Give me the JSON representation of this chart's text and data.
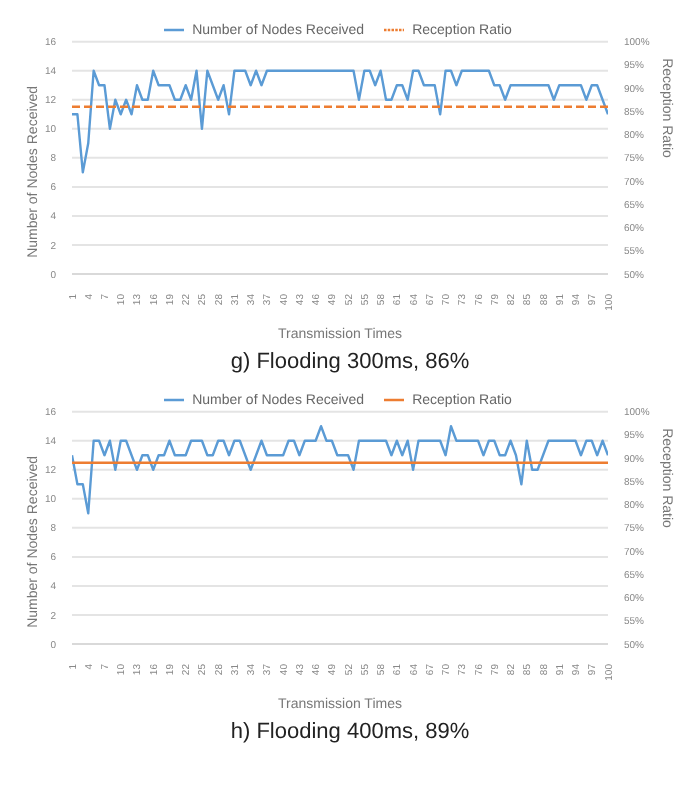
{
  "chart_data": [
    {
      "type": "line",
      "title": "g) Flooding 300ms, 86%",
      "xlabel": "Transmission Times",
      "ylabel": "Number of Nodes Received",
      "y2label": "Reception Ratio",
      "legend": "top",
      "grid": "y",
      "marker": "none",
      "x": [
        1,
        2,
        3,
        4,
        5,
        6,
        7,
        8,
        9,
        10,
        11,
        12,
        13,
        14,
        15,
        16,
        17,
        18,
        19,
        20,
        21,
        22,
        23,
        24,
        25,
        26,
        27,
        28,
        29,
        30,
        31,
        32,
        33,
        34,
        35,
        36,
        37,
        38,
        39,
        40,
        41,
        42,
        43,
        44,
        45,
        46,
        47,
        48,
        49,
        50,
        51,
        52,
        53,
        54,
        55,
        56,
        57,
        58,
        59,
        60,
        61,
        62,
        63,
        64,
        65,
        66,
        67,
        68,
        69,
        70,
        71,
        72,
        73,
        74,
        75,
        76,
        77,
        78,
        79,
        80,
        81,
        82,
        83,
        84,
        85,
        86,
        87,
        88,
        89,
        90,
        91,
        92,
        93,
        94,
        95,
        96,
        97,
        98,
        99,
        100
      ],
      "xlim": [
        1,
        100
      ],
      "xticks": [
        1,
        4,
        7,
        10,
        13,
        16,
        19,
        22,
        25,
        28,
        31,
        34,
        37,
        40,
        43,
        46,
        49,
        52,
        55,
        58,
        61,
        64,
        67,
        70,
        73,
        76,
        79,
        82,
        85,
        88,
        91,
        94,
        97,
        100
      ],
      "ylim": [
        0,
        16
      ],
      "yticks": [
        0,
        2,
        4,
        6,
        8,
        10,
        12,
        14,
        16
      ],
      "y2lim": [
        50,
        100
      ],
      "y2ticks": [
        {
          "value": 50,
          "label": "50%"
        },
        {
          "value": 55,
          "label": "55%"
        },
        {
          "value": 60,
          "label": "60%"
        },
        {
          "value": 65,
          "label": "65%"
        },
        {
          "value": 70,
          "label": "70%"
        },
        {
          "value": 75,
          "label": "75%"
        },
        {
          "value": 80,
          "label": "80%"
        },
        {
          "value": 85,
          "label": "85%"
        },
        {
          "value": 90,
          "label": "90%"
        },
        {
          "value": 95,
          "label": "95%"
        },
        {
          "value": 100,
          "label": "100%"
        }
      ],
      "series": [
        {
          "name": "Number of Nodes Received",
          "color": "#5b9bd5",
          "line_style": "solid",
          "values": [
            11,
            11,
            7,
            9,
            14,
            13,
            13,
            10,
            12,
            11,
            12,
            11,
            13,
            12,
            12,
            14,
            13,
            13,
            13,
            12,
            12,
            13,
            12,
            14,
            10,
            14,
            13,
            12,
            13,
            11,
            14,
            14,
            14,
            13,
            14,
            13,
            14,
            14,
            14,
            14,
            14,
            14,
            14,
            14,
            14,
            14,
            14,
            14,
            14,
            14,
            14,
            14,
            14,
            12,
            14,
            14,
            13,
            14,
            12,
            12,
            13,
            13,
            12,
            14,
            14,
            13,
            13,
            13,
            11,
            14,
            14,
            13,
            14,
            14,
            14,
            14,
            14,
            14,
            13,
            13,
            12,
            13,
            13,
            13,
            13,
            13,
            13,
            13,
            13,
            12,
            13,
            13,
            13,
            13,
            13,
            12,
            13,
            13,
            12,
            11
          ]
        },
        {
          "name": "Reception Ratio",
          "color": "#ed7d31",
          "axis": "y2",
          "line_style": "dashed",
          "values": [
            86,
            86,
            86,
            86,
            86,
            86,
            86,
            86,
            86,
            86,
            86,
            86,
            86,
            86,
            86,
            86,
            86,
            86,
            86,
            86,
            86,
            86,
            86,
            86,
            86,
            86,
            86,
            86,
            86,
            86,
            86,
            86,
            86,
            86,
            86,
            86,
            86,
            86,
            86,
            86,
            86,
            86,
            86,
            86,
            86,
            86,
            86,
            86,
            86,
            86,
            86,
            86,
            86,
            86,
            86,
            86,
            86,
            86,
            86,
            86,
            86,
            86,
            86,
            86,
            86,
            86,
            86,
            86,
            86,
            86,
            86,
            86,
            86,
            86,
            86,
            86,
            86,
            86,
            86,
            86,
            86,
            86,
            86,
            86,
            86,
            86,
            86,
            86,
            86,
            86,
            86,
            86,
            86,
            86,
            86,
            86,
            86,
            86,
            86,
            86
          ]
        }
      ]
    },
    {
      "type": "line",
      "title": "h) Flooding 400ms, 89%",
      "xlabel": "Transmission Times",
      "ylabel": "Number of Nodes Received",
      "y2label": "Reception Ratio",
      "legend": "top",
      "grid": "y",
      "marker": "none",
      "x": [
        1,
        2,
        3,
        4,
        5,
        6,
        7,
        8,
        9,
        10,
        11,
        12,
        13,
        14,
        15,
        16,
        17,
        18,
        19,
        20,
        21,
        22,
        23,
        24,
        25,
        26,
        27,
        28,
        29,
        30,
        31,
        32,
        33,
        34,
        35,
        36,
        37,
        38,
        39,
        40,
        41,
        42,
        43,
        44,
        45,
        46,
        47,
        48,
        49,
        50,
        51,
        52,
        53,
        54,
        55,
        56,
        57,
        58,
        59,
        60,
        61,
        62,
        63,
        64,
        65,
        66,
        67,
        68,
        69,
        70,
        71,
        72,
        73,
        74,
        75,
        76,
        77,
        78,
        79,
        80,
        81,
        82,
        83,
        84,
        85,
        86,
        87,
        88,
        89,
        90,
        91,
        92,
        93,
        94,
        95,
        96,
        97,
        98,
        99,
        100
      ],
      "xlim": [
        1,
        100
      ],
      "xticks": [
        1,
        4,
        7,
        10,
        13,
        16,
        19,
        22,
        25,
        28,
        31,
        34,
        37,
        40,
        43,
        46,
        49,
        52,
        55,
        58,
        61,
        64,
        67,
        70,
        73,
        76,
        79,
        82,
        85,
        88,
        91,
        94,
        97,
        100
      ],
      "ylim": [
        0,
        16
      ],
      "yticks": [
        0,
        2,
        4,
        6,
        8,
        10,
        12,
        14,
        16
      ],
      "y2lim": [
        50,
        100
      ],
      "y2ticks": [
        {
          "value": 50,
          "label": "50%"
        },
        {
          "value": 55,
          "label": "55%"
        },
        {
          "value": 60,
          "label": "60%"
        },
        {
          "value": 65,
          "label": "65%"
        },
        {
          "value": 70,
          "label": "70%"
        },
        {
          "value": 75,
          "label": "75%"
        },
        {
          "value": 80,
          "label": "80%"
        },
        {
          "value": 85,
          "label": "85%"
        },
        {
          "value": 90,
          "label": "90%"
        },
        {
          "value": 95,
          "label": "95%"
        },
        {
          "value": 100,
          "label": "100%"
        }
      ],
      "series": [
        {
          "name": "Number of Nodes Received",
          "color": "#5b9bd5",
          "line_style": "solid",
          "values": [
            13,
            11,
            11,
            9,
            14,
            14,
            13,
            14,
            12,
            14,
            14,
            13,
            12,
            13,
            13,
            12,
            13,
            13,
            14,
            13,
            13,
            13,
            14,
            14,
            14,
            13,
            13,
            14,
            14,
            13,
            14,
            14,
            13,
            12,
            13,
            14,
            13,
            13,
            13,
            13,
            14,
            14,
            13,
            14,
            14,
            14,
            15,
            14,
            14,
            13,
            13,
            13,
            12,
            14,
            14,
            14,
            14,
            14,
            14,
            13,
            14,
            13,
            14,
            12,
            14,
            14,
            14,
            14,
            14,
            13,
            15,
            14,
            14,
            14,
            14,
            14,
            13,
            14,
            14,
            13,
            13,
            14,
            13,
            11,
            14,
            12,
            12,
            13,
            14,
            14,
            14,
            14,
            14,
            14,
            13,
            14,
            14,
            13,
            14,
            13
          ]
        },
        {
          "name": "Reception Ratio",
          "color": "#ed7d31",
          "axis": "y2",
          "line_style": "solid",
          "values": [
            89,
            89,
            89,
            89,
            89,
            89,
            89,
            89,
            89,
            89,
            89,
            89,
            89,
            89,
            89,
            89,
            89,
            89,
            89,
            89,
            89,
            89,
            89,
            89,
            89,
            89,
            89,
            89,
            89,
            89,
            89,
            89,
            89,
            89,
            89,
            89,
            89,
            89,
            89,
            89,
            89,
            89,
            89,
            89,
            89,
            89,
            89,
            89,
            89,
            89,
            89,
            89,
            89,
            89,
            89,
            89,
            89,
            89,
            89,
            89,
            89,
            89,
            89,
            89,
            89,
            89,
            89,
            89,
            89,
            89,
            89,
            89,
            89,
            89,
            89,
            89,
            89,
            89,
            89,
            89,
            89,
            89,
            89,
            89,
            89,
            89,
            89,
            89,
            89,
            89,
            89,
            89,
            89,
            89,
            89,
            89,
            89,
            89,
            89,
            89
          ]
        }
      ]
    }
  ]
}
